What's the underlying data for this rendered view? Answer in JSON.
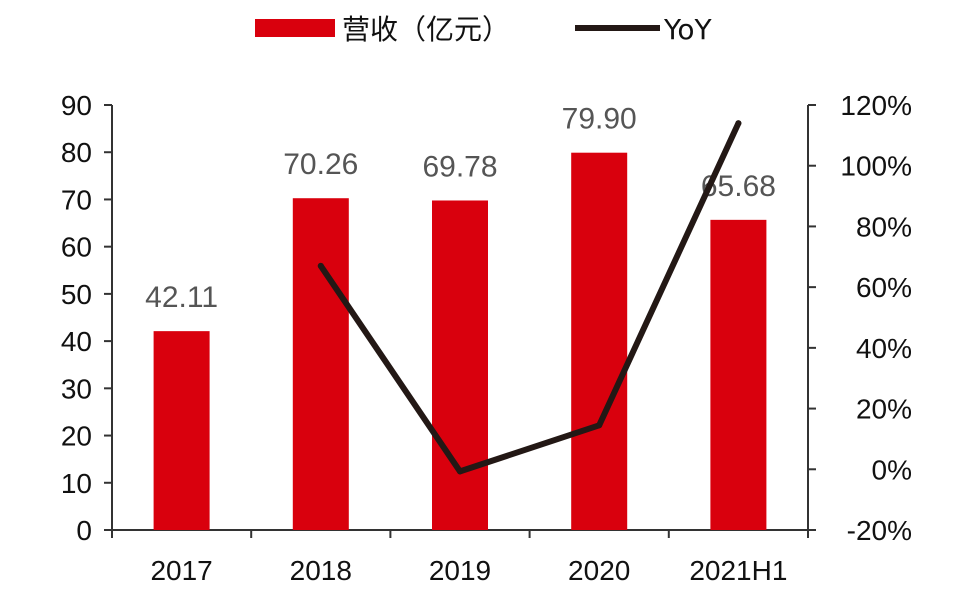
{
  "chart_data": {
    "type": "bar",
    "categories": [
      "2017",
      "2018",
      "2019",
      "2020",
      "2021H1"
    ],
    "series": [
      {
        "name": "营收（亿元）",
        "type": "bar",
        "axis": "left",
        "color": "#d9000d",
        "values": [
          42.11,
          70.26,
          69.78,
          79.9,
          65.68
        ],
        "labels": [
          "42.11",
          "70.26",
          "69.78",
          "79.90",
          "65.68"
        ]
      },
      {
        "name": "YoY",
        "type": "line",
        "axis": "right",
        "color": "#231815",
        "values": [
          null,
          67,
          -0.7,
          14.5,
          114
        ]
      }
    ],
    "y_left": {
      "min": 0,
      "max": 90,
      "step": 10,
      "ticks": [
        "0",
        "10",
        "20",
        "30",
        "40",
        "50",
        "60",
        "70",
        "80",
        "90"
      ]
    },
    "y_right": {
      "min": -20,
      "max": 120,
      "step": 20,
      "ticks": [
        "-20%",
        "0%",
        "20%",
        "40%",
        "60%",
        "80%",
        "100%",
        "120%"
      ]
    },
    "legend_position": "top-center",
    "grid": false
  }
}
